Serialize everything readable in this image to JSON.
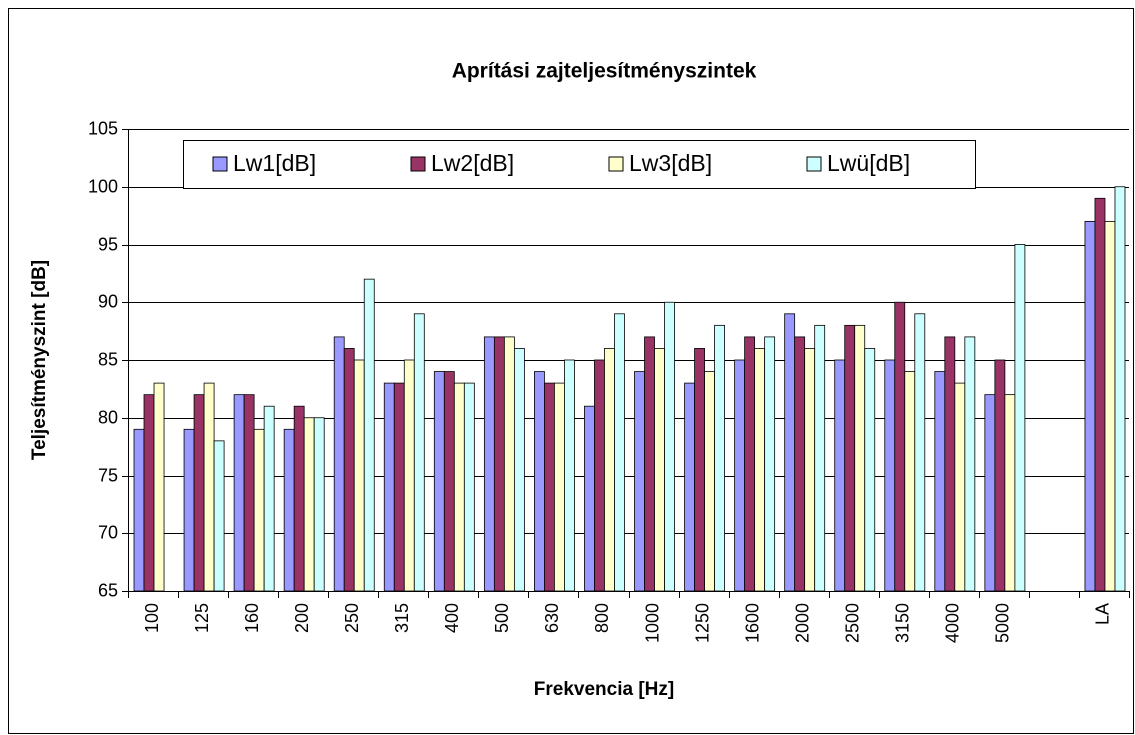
{
  "chart_data": {
    "type": "bar",
    "title": "Aprítási zajteljesítményszintek",
    "x_label": "Frekvencia [Hz]",
    "y_label": "Teljesítményszint [dB]",
    "categories": [
      "100",
      "125",
      "160",
      "200",
      "250",
      "315",
      "400",
      "500",
      "630",
      "800",
      "1000",
      "1250",
      "1600",
      "2000",
      "2500",
      "3150",
      "4000",
      "5000",
      null,
      "LA"
    ],
    "series": [
      {
        "name": "Lw1[dB]",
        "color": "#9999ff",
        "values": [
          79,
          79,
          82,
          79,
          87,
          83,
          84,
          87,
          84,
          81,
          84,
          83,
          85,
          89,
          85,
          85,
          84,
          82,
          null,
          97
        ]
      },
      {
        "name": "Lw2[dB]",
        "color": "#993366",
        "values": [
          82,
          82,
          82,
          81,
          86,
          83,
          84,
          87,
          83,
          85,
          87,
          86,
          87,
          87,
          88,
          90,
          87,
          85,
          null,
          99
        ]
      },
      {
        "name": "Lw3[dB]",
        "color": "#ffffcc",
        "values": [
          83,
          83,
          79,
          80,
          85,
          85,
          83,
          87,
          83,
          86,
          86,
          84,
          86,
          86,
          88,
          84,
          83,
          82,
          null,
          97
        ]
      },
      {
        "name": "Lwü[dB]",
        "color": "#ccffff",
        "values": [
          null,
          78,
          81,
          80,
          92,
          89,
          83,
          86,
          85,
          89,
          90,
          88,
          87,
          88,
          86,
          89,
          87,
          95,
          null,
          100
        ]
      }
    ],
    "ylim": [
      65,
      105
    ],
    "yticks": [
      65,
      70,
      75,
      80,
      85,
      90,
      95,
      100,
      105
    ],
    "grid": true,
    "legend": "top"
  }
}
